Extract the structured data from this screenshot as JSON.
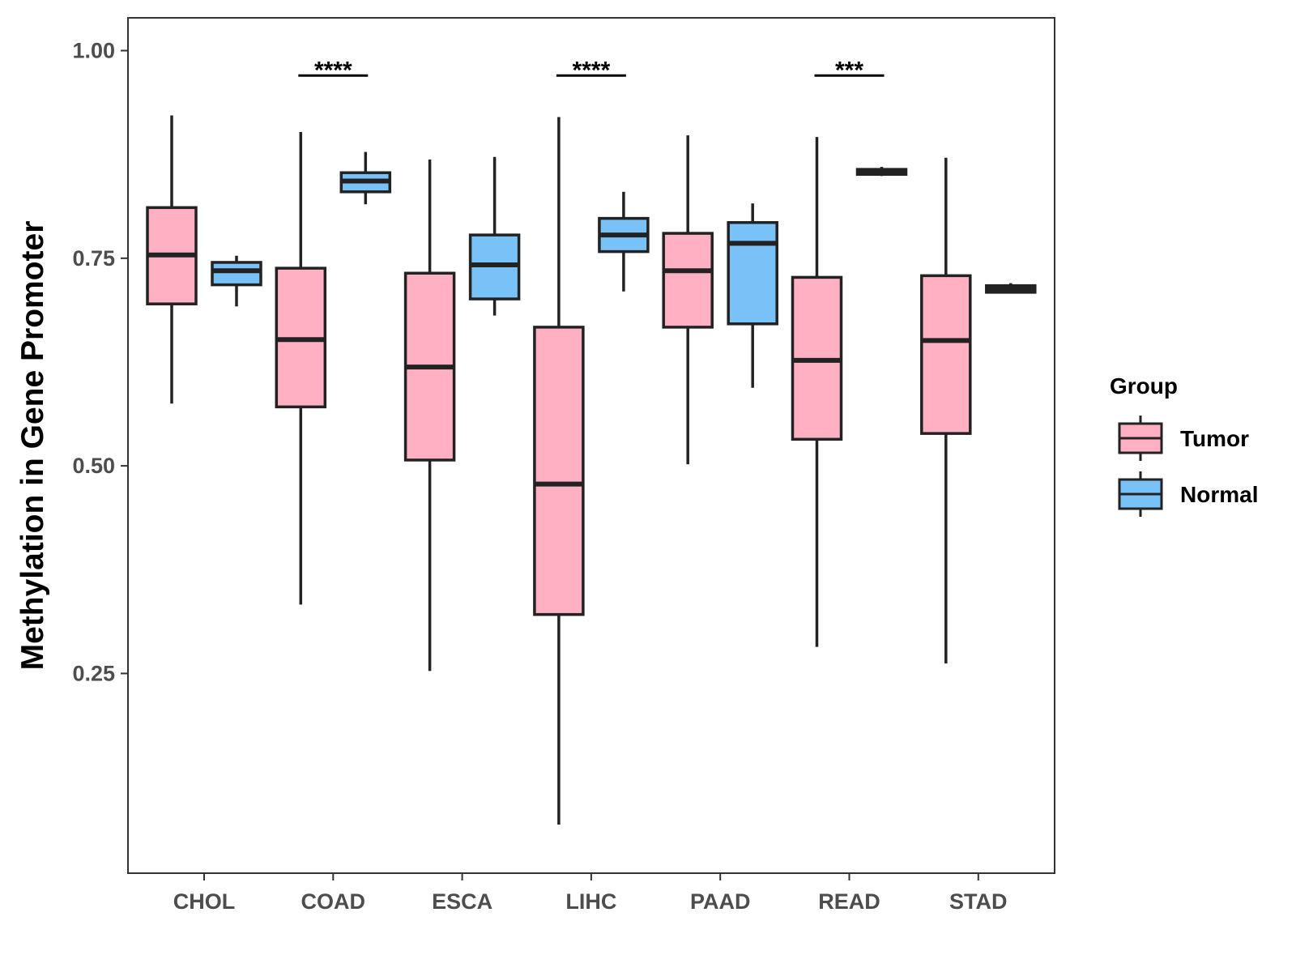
{
  "chart_data": {
    "type": "boxplot",
    "title": "",
    "xlabel": "",
    "ylabel": "Methylation in Gene Promoter",
    "ylim": [
      0.03,
      1.02
    ],
    "yticks": [
      0.25,
      0.5,
      0.75,
      1.0
    ],
    "ytick_labels": [
      "0.25",
      "0.50",
      "0.75",
      "1.00"
    ],
    "categories": [
      "CHOL",
      "COAD",
      "ESCA",
      "LIHC",
      "PAAD",
      "READ",
      "STAD"
    ],
    "legend": {
      "title": "Group",
      "position": "right",
      "entries": [
        {
          "name": "Tumor",
          "color": "#FFB0C2"
        },
        {
          "name": "Normal",
          "color": "#79C2F8"
        }
      ]
    },
    "series": [
      {
        "name": "Tumor",
        "color": "#FFB0C2",
        "boxes": [
          {
            "category": "CHOL",
            "min": 0.575,
            "q1": 0.695,
            "median": 0.754,
            "q3": 0.811,
            "max": 0.922
          },
          {
            "category": "COAD",
            "min": 0.333,
            "q1": 0.571,
            "median": 0.652,
            "q3": 0.738,
            "max": 0.902
          },
          {
            "category": "ESCA",
            "min": 0.253,
            "q1": 0.507,
            "median": 0.619,
            "q3": 0.732,
            "max": 0.869
          },
          {
            "category": "LIHC",
            "min": 0.068,
            "q1": 0.321,
            "median": 0.478,
            "q3": 0.667,
            "max": 0.92
          },
          {
            "category": "PAAD",
            "min": 0.502,
            "q1": 0.667,
            "median": 0.735,
            "q3": 0.78,
            "max": 0.898
          },
          {
            "category": "READ",
            "min": 0.282,
            "q1": 0.532,
            "median": 0.627,
            "q3": 0.727,
            "max": 0.896
          },
          {
            "category": "STAD",
            "min": 0.262,
            "q1": 0.539,
            "median": 0.651,
            "q3": 0.729,
            "max": 0.871
          }
        ]
      },
      {
        "name": "Normal",
        "color": "#79C2F8",
        "boxes": [
          {
            "category": "CHOL",
            "min": 0.692,
            "q1": 0.718,
            "median": 0.735,
            "q3": 0.745,
            "max": 0.753
          },
          {
            "category": "COAD",
            "min": 0.815,
            "q1": 0.83,
            "median": 0.843,
            "q3": 0.853,
            "max": 0.878
          },
          {
            "category": "ESCA",
            "min": 0.681,
            "q1": 0.701,
            "median": 0.742,
            "q3": 0.778,
            "max": 0.872
          },
          {
            "category": "LIHC",
            "min": 0.71,
            "q1": 0.758,
            "median": 0.778,
            "q3": 0.798,
            "max": 0.83
          },
          {
            "category": "PAAD",
            "min": 0.594,
            "q1": 0.671,
            "median": 0.768,
            "q3": 0.793,
            "max": 0.816
          },
          {
            "category": "READ",
            "min": 0.849,
            "q1": 0.851,
            "median": 0.854,
            "q3": 0.857,
            "max": 0.86
          },
          {
            "category": "STAD",
            "min": 0.708,
            "q1": 0.709,
            "median": 0.713,
            "q3": 0.717,
            "max": 0.72
          }
        ]
      }
    ],
    "annotations": [
      {
        "category": "COAD",
        "y": 0.97,
        "label": "****"
      },
      {
        "category": "LIHC",
        "y": 0.97,
        "label": "****"
      },
      {
        "category": "READ",
        "y": 0.97,
        "label": "***"
      }
    ]
  }
}
